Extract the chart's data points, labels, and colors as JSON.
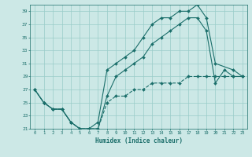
{
  "xlabel": "Humidex (Indice chaleur)",
  "background_color": "#cce8e6",
  "grid_color": "#99ccc9",
  "line_color": "#1a6e6a",
  "xlim": [
    -0.5,
    23.5
  ],
  "ylim": [
    21,
    40
  ],
  "xticks": [
    0,
    1,
    2,
    3,
    4,
    5,
    6,
    7,
    8,
    9,
    10,
    11,
    12,
    13,
    14,
    15,
    16,
    17,
    18,
    19,
    20,
    21,
    22,
    23
  ],
  "yticks": [
    21,
    23,
    25,
    27,
    29,
    31,
    33,
    35,
    37,
    39
  ],
  "line1_x": [
    0,
    1,
    2,
    3,
    4,
    5,
    6,
    7,
    8,
    9,
    10,
    11,
    12,
    13,
    14,
    15,
    16,
    17,
    18,
    19,
    20,
    22,
    23
  ],
  "line1_y": [
    27,
    25,
    24,
    24,
    22,
    21,
    21,
    22,
    30,
    31,
    32,
    33,
    35,
    37,
    38,
    38,
    39,
    39,
    40,
    38,
    31,
    30,
    29
  ],
  "line2_x": [
    0,
    1,
    2,
    3,
    4,
    5,
    6,
    7,
    8,
    9,
    10,
    11,
    12,
    13,
    14,
    15,
    16,
    17,
    18,
    19,
    20,
    21,
    22,
    23
  ],
  "line2_y": [
    27,
    25,
    24,
    24,
    22,
    21,
    21,
    21,
    26,
    29,
    30,
    31,
    32,
    34,
    35,
    36,
    37,
    38,
    38,
    36,
    28,
    30,
    29,
    29
  ],
  "line3_x": [
    0,
    1,
    2,
    3,
    4,
    5,
    6,
    7,
    8,
    9,
    10,
    11,
    12,
    13,
    14,
    15,
    16,
    17,
    18,
    19,
    20,
    21,
    22,
    23
  ],
  "line3_y": [
    27,
    25,
    24,
    24,
    22,
    21,
    21,
    21,
    25,
    26,
    26,
    27,
    27,
    28,
    28,
    28,
    28,
    29,
    29,
    29,
    29,
    29,
    29,
    29
  ],
  "marker": "D",
  "markersize": 2.0,
  "linewidth": 0.8
}
